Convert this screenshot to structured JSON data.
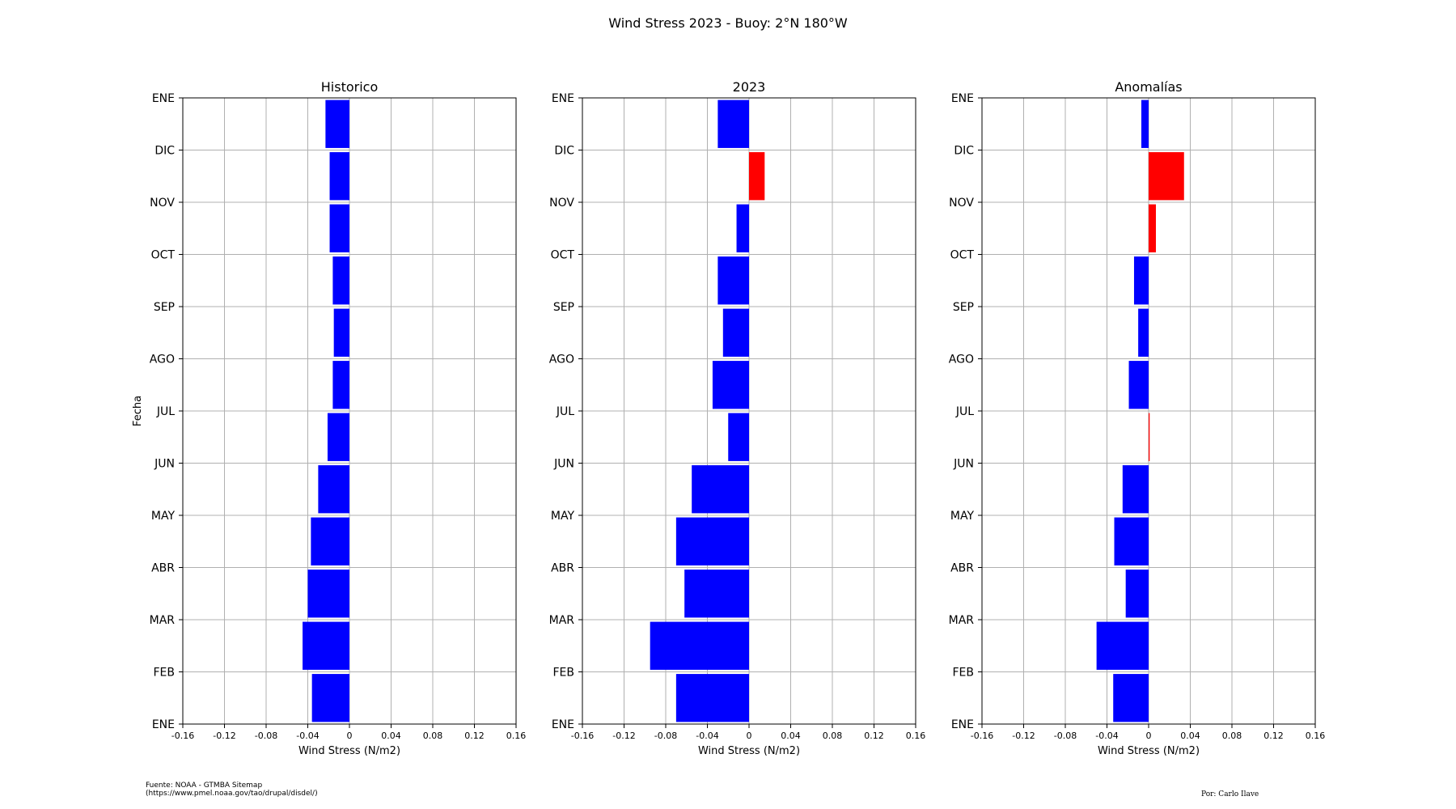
{
  "figure": {
    "title": "Wind Stress 2023 - Buoy: 2°N 180°W",
    "source_line1": "Fuente: NOAA - GTMBA Sitemap",
    "source_line2": "(https://www.pmel.noaa.gov/tao/drupal/disdel/)",
    "author": "Por: Carlo Ilave"
  },
  "colors": {
    "negative": "#0000ff",
    "positive": "#ff0000",
    "grid": "#b0b0b0"
  },
  "chart_data": [
    {
      "type": "bar",
      "orientation": "horizontal",
      "title": "Historico",
      "xlabel": "Wind Stress (N/m2)",
      "ylabel": "Fecha",
      "xlim": [
        -0.16,
        0.16
      ],
      "xticks": [
        "-0.16",
        "-0.12",
        "-0.08",
        "-0.04",
        "0",
        "0.04",
        "0.08",
        "0.12",
        "0.16"
      ],
      "ytick_labels": [
        "ENE",
        "FEB",
        "MAR",
        "ABR",
        "MAY",
        "JUN",
        "JUL",
        "AGO",
        "SEP",
        "OCT",
        "NOV",
        "DIC",
        "ENE"
      ],
      "grid": true,
      "categories": [
        "ENE",
        "FEB",
        "MAR",
        "ABR",
        "MAY",
        "JUN",
        "JUL",
        "AGO",
        "SEP",
        "OCT",
        "NOV",
        "DIC"
      ],
      "values": [
        -0.036,
        -0.045,
        -0.04,
        -0.037,
        -0.03,
        -0.021,
        -0.016,
        -0.015,
        -0.016,
        -0.019,
        -0.019,
        -0.023
      ]
    },
    {
      "type": "bar",
      "orientation": "horizontal",
      "title": "2023",
      "xlabel": "Wind Stress (N/m2)",
      "ylabel": "",
      "xlim": [
        -0.16,
        0.16
      ],
      "xticks": [
        "-0.16",
        "-0.12",
        "-0.08",
        "-0.04",
        "0",
        "0.04",
        "0.08",
        "0.12",
        "0.16"
      ],
      "ytick_labels": [
        "ENE",
        "FEB",
        "MAR",
        "ABR",
        "MAY",
        "JUN",
        "JUL",
        "AGO",
        "SEP",
        "OCT",
        "NOV",
        "DIC",
        "ENE"
      ],
      "grid": true,
      "categories": [
        "ENE",
        "FEB",
        "MAR",
        "ABR",
        "MAY",
        "JUN",
        "JUL",
        "AGO",
        "SEP",
        "OCT",
        "NOV",
        "DIC"
      ],
      "values": [
        -0.07,
        -0.095,
        -0.062,
        -0.07,
        -0.055,
        -0.02,
        -0.035,
        -0.025,
        -0.03,
        -0.012,
        0.015,
        -0.03
      ]
    },
    {
      "type": "bar",
      "orientation": "horizontal",
      "title": "Anomalías",
      "xlabel": "Wind Stress (N/m2)",
      "ylabel": "",
      "xlim": [
        -0.16,
        0.16
      ],
      "xticks": [
        "-0.16",
        "-0.12",
        "-0.08",
        "-0.04",
        "0",
        "0.04",
        "0.08",
        "0.12",
        "0.16"
      ],
      "ytick_labels": [
        "ENE",
        "FEB",
        "MAR",
        "ABR",
        "MAY",
        "JUN",
        "JUL",
        "AGO",
        "SEP",
        "OCT",
        "NOV",
        "DIC",
        "ENE"
      ],
      "grid": true,
      "categories": [
        "ENE",
        "FEB",
        "MAR",
        "ABR",
        "MAY",
        "JUN",
        "JUL",
        "AGO",
        "SEP",
        "OCT",
        "NOV",
        "DIC"
      ],
      "values": [
        -0.034,
        -0.05,
        -0.022,
        -0.033,
        -0.025,
        0.001,
        -0.019,
        -0.01,
        -0.014,
        0.007,
        0.034,
        -0.007
      ]
    }
  ]
}
